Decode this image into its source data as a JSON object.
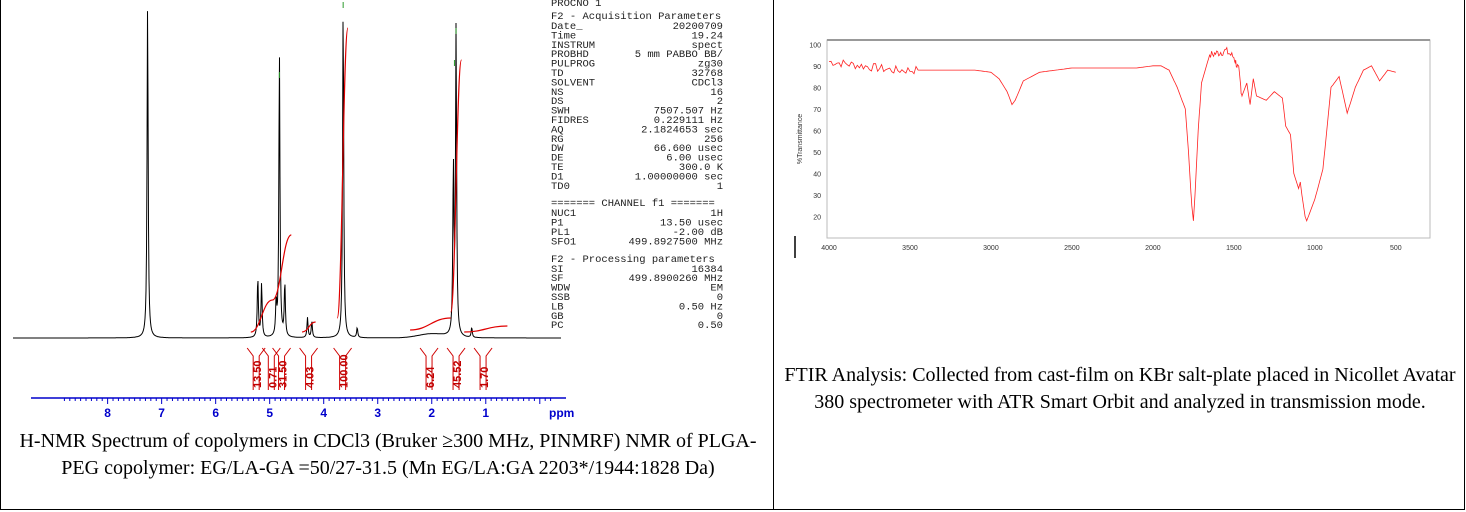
{
  "nmr": {
    "header_top": "PROCNO                     1",
    "acq_title": "F2 - Acquisition Parameters",
    "params": [
      {
        "k": "Date_",
        "v": "20200709"
      },
      {
        "k": "Time",
        "v": "19.24"
      },
      {
        "k": "INSTRUM",
        "v": "spect"
      },
      {
        "k": "PROBHD",
        "v": "5 mm PABBO BB/"
      },
      {
        "k": "PULPROG",
        "v": "zg30"
      },
      {
        "k": "TD",
        "v": "32768"
      },
      {
        "k": "SOLVENT",
        "v": "CDCl3"
      },
      {
        "k": "NS",
        "v": "16"
      },
      {
        "k": "DS",
        "v": "2"
      },
      {
        "k": "SWH",
        "v": "7507.507 Hz"
      },
      {
        "k": "FIDRES",
        "v": "0.229111 Hz"
      },
      {
        "k": "AQ",
        "v": "2.1824653 sec"
      },
      {
        "k": "RG",
        "v": "256"
      },
      {
        "k": "DW",
        "v": "66.600 usec"
      },
      {
        "k": "DE",
        "v": "6.00 usec"
      },
      {
        "k": "TE",
        "v": "300.0 K"
      },
      {
        "k": "D1",
        "v": "1.00000000 sec"
      },
      {
        "k": "TD0",
        "v": "1"
      }
    ],
    "channel_title": "======= CHANNEL f1 =======",
    "channel": [
      {
        "k": "NUC1",
        "v": "1H"
      },
      {
        "k": "P1",
        "v": "13.50 usec"
      },
      {
        "k": "PL1",
        "v": "-2.00 dB"
      },
      {
        "k": "SFO1",
        "v": "499.8927500 MHz"
      }
    ],
    "proc_title": "F2 - Processing parameters",
    "proc": [
      {
        "k": "SI",
        "v": "16384"
      },
      {
        "k": "SF",
        "v": "499.8900260 MHz"
      },
      {
        "k": "WDW",
        "v": "EM"
      },
      {
        "k": "SSB",
        "v": "0"
      },
      {
        "k": "LB",
        "v": "0.50 Hz"
      },
      {
        "k": "GB",
        "v": "0"
      },
      {
        "k": "PC",
        "v": "0.50"
      }
    ],
    "caption": "H-NMR Spectrum of copolymers in CDCl3 (Bruker ≥300 MHz, PINMRF) NMR of PLGA-PEG copolymer: EG/LA-GA =50/27-31.5 (Mn EG/LA:GA 2203*/1944:1828 Da)"
  },
  "ftir": {
    "caption": "FTIR Analysis: Collected from cast-film on KBr salt-plate placed in Nicollet Avatar 380 spectrometer with ATR Smart Orbit and analyzed in transmission mode."
  },
  "chart_data": [
    {
      "type": "line",
      "xlabel": "ppm",
      "xlim": [
        8.9,
        -0.3
      ],
      "x_ticks": [
        "8",
        "7",
        "6",
        "5",
        "4",
        "3",
        "2",
        "1",
        "ppm"
      ],
      "x_tick_values": [
        8,
        7,
        6,
        5,
        4,
        3,
        2,
        1
      ],
      "peaks_ppm": [
        {
          "x": 7.26,
          "h": 1.0
        },
        {
          "x": 5.22,
          "h": 0.18
        },
        {
          "x": 5.15,
          "h": 0.16
        },
        {
          "x": 4.88,
          "h": 0.1
        },
        {
          "x": 4.82,
          "h": 0.85
        },
        {
          "x": 4.72,
          "h": 0.16
        },
        {
          "x": 4.3,
          "h": 0.06
        },
        {
          "x": 4.22,
          "h": 0.05
        },
        {
          "x": 3.64,
          "h": 1.0
        },
        {
          "x": 3.38,
          "h": 0.03
        },
        {
          "x": 1.6,
          "h": 0.5
        },
        {
          "x": 1.55,
          "h": 0.92
        },
        {
          "x": 1.26,
          "h": 0.03
        }
      ],
      "integrals": [
        {
          "label": "13.50",
          "x": 5.25
        },
        {
          "label": "0.71",
          "x": 4.97
        },
        {
          "label": "31.50",
          "x": 4.78
        },
        {
          "label": "4.03",
          "x": 4.28
        },
        {
          "label": "100.00",
          "x": 3.65
        },
        {
          "label": "6.24",
          "x": 2.05
        },
        {
          "label": "45.52",
          "x": 1.55
        },
        {
          "label": "1.70",
          "x": 1.05
        }
      ]
    },
    {
      "type": "line",
      "xlabel": "",
      "ylabel": "%Transmittance",
      "xlim": [
        4000,
        400
      ],
      "ylim": [
        10,
        102
      ],
      "x_ticks": [
        "4000",
        "3500",
        "3000",
        "2500",
        "2000",
        "1500",
        "1000",
        "500"
      ],
      "x_tick_values": [
        4000,
        3500,
        3000,
        2500,
        2000,
        1500,
        1000,
        500
      ],
      "y_ticks": [
        "100",
        "90",
        "80",
        "70",
        "60",
        "50",
        "40",
        "30",
        "20"
      ],
      "y_tick_values": [
        100,
        90,
        80,
        70,
        60,
        50,
        40,
        30,
        20
      ],
      "series": [
        {
          "x": [
            4000,
            3900,
            3800,
            3700,
            3600,
            3500,
            3400,
            3300,
            3200,
            3100,
            3000,
            2950,
            2900,
            2870,
            2850,
            2800,
            2700,
            2600,
            2500,
            2400,
            2300,
            2200,
            2100,
            2000,
            1950,
            1900,
            1850,
            1800,
            1780,
            1760,
            1750,
            1740,
            1720,
            1700,
            1650,
            1600,
            1550,
            1500,
            1470,
            1450,
            1420,
            1400,
            1380,
            1360,
            1300,
            1250,
            1200,
            1180,
            1150,
            1130,
            1100,
            1090,
            1080,
            1060,
            1050,
            1000,
            950,
            900,
            850,
            800,
            750,
            700,
            650,
            600,
            550,
            500
          ],
          "y": [
            92,
            91,
            90,
            89,
            88,
            88,
            88,
            88,
            88,
            88,
            87,
            84,
            78,
            72,
            74,
            83,
            87,
            88,
            89,
            89,
            89,
            89,
            89,
            90,
            90,
            88,
            80,
            70,
            50,
            25,
            18,
            30,
            60,
            82,
            95,
            96,
            97,
            94,
            88,
            76,
            82,
            72,
            84,
            76,
            74,
            78,
            75,
            62,
            58,
            40,
            33,
            36,
            30,
            20,
            18,
            28,
            42,
            80,
            85,
            68,
            80,
            88,
            90,
            83,
            88,
            87
          ]
        }
      ]
    }
  ]
}
